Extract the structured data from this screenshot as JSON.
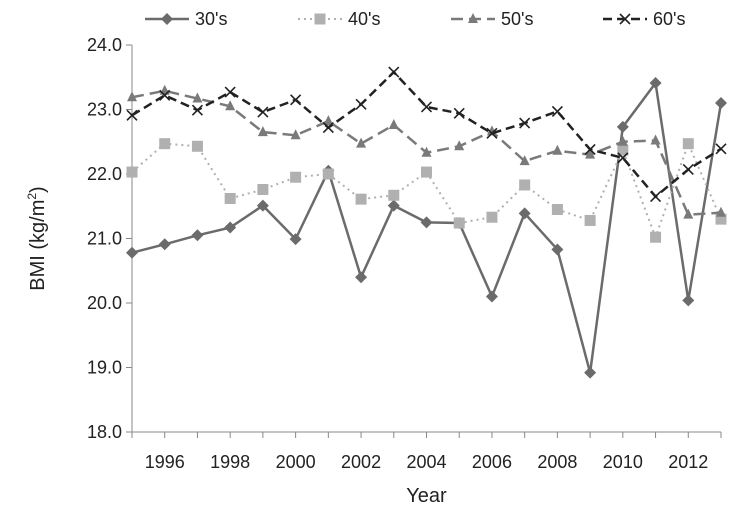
{
  "chart_data": {
    "type": "line",
    "xlabel": "Year",
    "ylabel_main": "BMI (kg/m",
    "ylabel_sup": "2",
    "ylabel_close": ")",
    "ylim": [
      18.0,
      24.0
    ],
    "xlim": [
      1995,
      2013
    ],
    "y_ticks": [
      "18.0",
      "19.0",
      "20.0",
      "21.0",
      "22.0",
      "23.0",
      "24.0"
    ],
    "x_ticks": [
      "1996",
      "1998",
      "2000",
      "2002",
      "2004",
      "2006",
      "2008",
      "2010",
      "2012"
    ],
    "grid": false,
    "legend_position": "top",
    "x": [
      1995,
      1996,
      1997,
      1998,
      1999,
      2000,
      2001,
      2002,
      2003,
      2004,
      2005,
      2006,
      2007,
      2008,
      2009,
      2010,
      2011,
      2012,
      2013
    ],
    "series": [
      {
        "name": "30's",
        "marker": "diamond",
        "dash": "solid",
        "color": "#6b6b6b",
        "values": [
          20.78,
          20.91,
          21.05,
          21.17,
          21.51,
          20.99,
          22.05,
          20.4,
          21.51,
          21.25,
          21.24,
          20.1,
          21.39,
          20.83,
          18.92,
          22.73,
          23.41,
          20.04,
          23.1
        ]
      },
      {
        "name": "40's",
        "marker": "square",
        "dash": "dotted",
        "color": "#b0b0b0",
        "values": [
          22.03,
          22.47,
          22.43,
          21.62,
          21.76,
          21.95,
          22.0,
          21.61,
          21.67,
          22.03,
          21.24,
          21.33,
          21.83,
          21.45,
          21.28,
          22.37,
          21.02,
          22.47,
          21.3
        ]
      },
      {
        "name": "50's",
        "marker": "triangle",
        "dash": "long-dash",
        "color": "#7a7a7a",
        "values": [
          23.19,
          23.29,
          23.17,
          23.05,
          22.65,
          22.6,
          22.82,
          22.47,
          22.76,
          22.33,
          22.43,
          22.66,
          22.2,
          22.36,
          22.3,
          22.5,
          22.52,
          21.37,
          21.4
        ]
      },
      {
        "name": "60's",
        "marker": "cross",
        "dash": "dashed",
        "color": "#222222",
        "values": [
          22.91,
          23.22,
          22.99,
          23.27,
          22.96,
          23.15,
          22.72,
          23.08,
          23.58,
          23.04,
          22.94,
          22.63,
          22.79,
          22.97,
          22.38,
          22.25,
          21.65,
          22.07,
          22.39
        ]
      }
    ]
  }
}
